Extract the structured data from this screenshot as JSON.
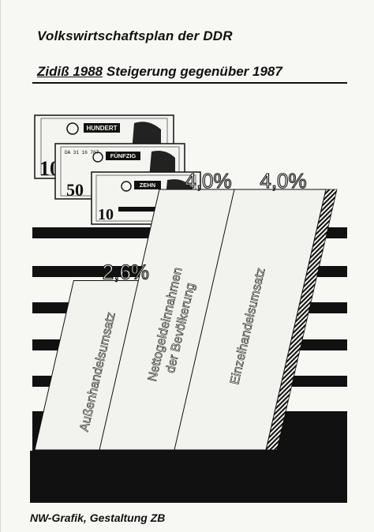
{
  "header": {
    "title": "Volkswirtschaftsplan der DDR",
    "subtitle_lead": "Zidiß 1988",
    "subtitle_rest": " Steigerung gegenüber 1987"
  },
  "chart_data": {
    "type": "bar",
    "categories": [
      "Außenhandelsumsatz",
      "Nettogeldeinnahmen der Bevölkerung",
      "Einzelhandelsumsatz"
    ],
    "category_lines": [
      [
        "Außenhandelsumsatz"
      ],
      [
        "Nettogeldeinnahmen",
        "der Bevölkerung"
      ],
      [
        "Einzelhandelsumsatz"
      ]
    ],
    "values": [
      2.6,
      4.0,
      4.0
    ],
    "value_labels": [
      "2,6%",
      "4,0%",
      "4,0%"
    ],
    "unit": "%",
    "title": "Volkswirtschaftsplan der DDR",
    "subtitle": "Zidiß 1988 Steigerung gegenüber 1987",
    "xlabel": "",
    "ylabel": "",
    "grid": false,
    "legend": "none"
  },
  "banknotes": [
    {
      "denomination": "100",
      "word": "HUNDERT"
    },
    {
      "denomination": "50",
      "word": "FÜNFZIG"
    },
    {
      "denomination": "10",
      "word": "ZEHN"
    }
  ],
  "footer": {
    "credit": "NW-Grafik, Gestaltung ZB"
  },
  "colors": {
    "ink": "#111111",
    "paper": "#f7f7f4",
    "bar_face": "#f2f2ee"
  }
}
